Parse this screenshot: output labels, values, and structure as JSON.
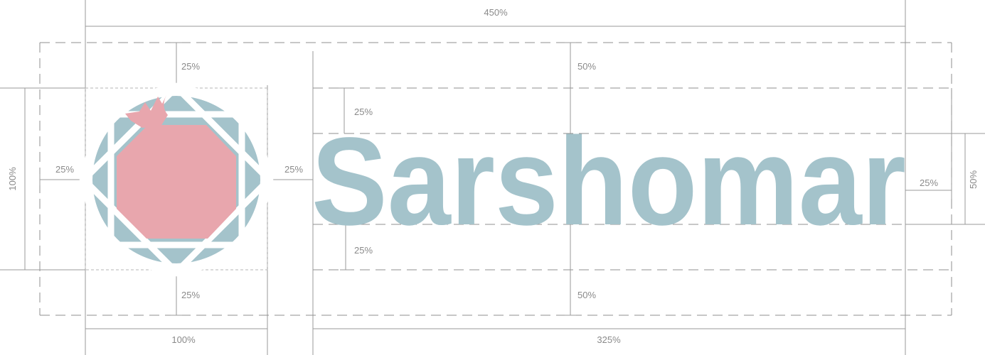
{
  "brand": {
    "wordmark": "Sarshomar",
    "colors": {
      "wordmark": "#a4c3cb",
      "emblem_ring": "#a4c3cb",
      "pomegranate": "#e8a6ad",
      "guides": "#9a9a9a"
    }
  },
  "icons": {
    "emblem": "pomegranate-octagram-icon"
  },
  "dimensions": {
    "total_width": "450%",
    "emblem_width": "100%",
    "wordmark_width": "325%",
    "emblem_height": "100%",
    "top_margin": "25%",
    "bottom_margin": "25%",
    "left_margin": "25%",
    "gap": "25%",
    "wordmark_top_outer": "50%",
    "wordmark_top_inner": "25%",
    "wordmark_bottom_inner": "25%",
    "wordmark_bottom_outer": "50%",
    "right_margin": "25%",
    "right_height": "50%"
  }
}
